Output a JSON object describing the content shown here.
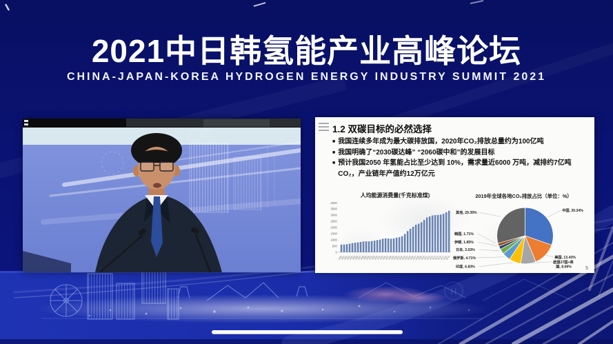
{
  "banner": {
    "title": "2021中日韩氢能产业高峰论坛",
    "subtitle": "CHINA-JAPAN-KOREA HYDROGEN ENERGY INDUSTRY SUMMIT 2021"
  },
  "slide": {
    "title": "1.2 双碳目标的必然选择",
    "bullet_marker": "■",
    "bullets": [
      "我国连续多年成为最大碳排放国，2020年CO₂排放总量约为100亿吨",
      "我国明确了“2030碳达峰” “2060碳中和”的发展目标",
      "预计我国2050 年氢能占比至少达到 10%，需求量近6000 万吨，减排约7亿吨CO₂，产业链年产值约12万亿元"
    ],
    "page_number": "5"
  },
  "decor": {
    "watermark_letter": "H"
  },
  "colors": {
    "background_top": "#081062",
    "background_band": "#1d32b2",
    "banner_text": "#ffffff",
    "slide_background": "#fbfbfa",
    "video_backdrop": "#7d90dc"
  },
  "chart_data": [
    {
      "type": "bar",
      "title": "人均能源消费量(千克标准煤)",
      "categories": [
        "1980",
        "1981",
        "1982",
        "1983",
        "1984",
        "1985",
        "1986",
        "1987",
        "1988",
        "1989",
        "1990",
        "1991",
        "1992",
        "1993",
        "1994",
        "1995",
        "1996",
        "1997",
        "1998",
        "1999",
        "2000",
        "2001",
        "2002",
        "2003",
        "2004",
        "2005",
        "2006",
        "2007",
        "2008",
        "2009",
        "2010",
        "2011",
        "2012",
        "2013",
        "2014",
        "2015",
        "2016",
        "2017",
        "2018",
        "2019"
      ],
      "values": [
        614,
        617,
        646,
        687,
        737,
        767,
        790,
        829,
        869,
        880,
        872,
        903,
        938,
        980,
        1015,
        1094,
        1123,
        1109,
        1094,
        1115,
        1174,
        1214,
        1297,
        1477,
        1707,
        1892,
        2062,
        2221,
        2302,
        2422,
        2613,
        2817,
        2894,
        2977,
        3005,
        3020,
        3043,
        3119,
        3238,
        3362
      ],
      "ylim": [
        0,
        4000
      ],
      "ytick_step": 500,
      "grid": false,
      "bar_color": "#4a6fae"
    },
    {
      "type": "pie",
      "title": "2019年全球各地CO₂排放占比（单位：%）",
      "slices": [
        {
          "name": "中国",
          "value": 30.34,
          "color": "#4472C4",
          "label": "中国, 30.34%",
          "label_pos": [
            159,
            31
          ],
          "leader_end": [
            138,
            39
          ]
        },
        {
          "name": "美国",
          "value": 13.43,
          "color": "#ED7D31",
          "label": "美国, 13.43%",
          "label_pos": [
            148,
            99
          ],
          "leader_end": [
            134,
            94
          ]
        },
        {
          "name": "欧盟27国+英国",
          "value": 8.69,
          "color": "#A5A5A5",
          "label": "欧盟27国+英\n国, 8.69%",
          "label_pos": [
            146,
            106
          ],
          "leader_end": [
            108,
            106
          ]
        },
        {
          "name": "印度",
          "value": 6.83,
          "color": "#FFC000",
          "label": "印度, 6.83%",
          "label_pos": [
            4,
            113
          ],
          "leader_end": [
            88,
            105
          ]
        },
        {
          "name": "俄罗斯",
          "value": 4.71,
          "color": "#5B9BD5",
          "label": "俄罗斯, 4.71%",
          "label_pos": [
            0,
            100
          ],
          "leader_end": [
            74,
            97
          ]
        },
        {
          "name": "日本",
          "value": 3.03,
          "color": "#70AD47",
          "label": "日本, 3.03%",
          "label_pos": [
            4,
            88
          ],
          "leader_end": [
            67,
            88
          ]
        },
        {
          "name": "伊朗",
          "value": 1.85,
          "color": "#264478",
          "label": "伊朗, 1.85%",
          "label_pos": [
            2,
            77
          ],
          "leader_end": [
            64,
            81
          ]
        },
        {
          "name": "韩国",
          "value": 1.71,
          "color": "#9E480E",
          "label": "韩国, 1.71%",
          "label_pos": [
            2,
            65
          ],
          "leader_end": [
            62,
            77
          ]
        },
        {
          "name": "其他",
          "value": 29.39,
          "color": "#636363",
          "label": "其他, 29.39%",
          "label_pos": [
            4,
            34
          ],
          "leader_end": [
            69,
            38
          ]
        }
      ]
    }
  ]
}
